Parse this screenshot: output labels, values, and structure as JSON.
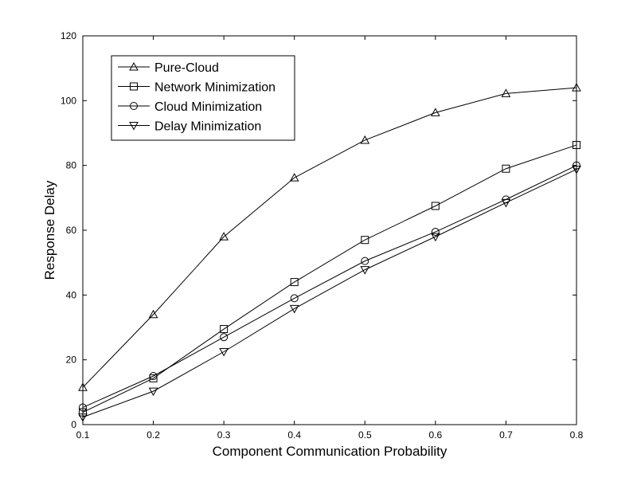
{
  "chart_data": {
    "type": "line",
    "title": "",
    "xlabel": "Component Communication Probability",
    "ylabel": "Response Delay",
    "x": [
      0.1,
      0.2,
      0.3,
      0.4,
      0.5,
      0.6,
      0.7,
      0.8
    ],
    "xlim": [
      0.1,
      0.8
    ],
    "ylim": [
      0,
      120
    ],
    "xticks": [
      "0.1",
      "0.2",
      "0.3",
      "0.4",
      "0.5",
      "0.6",
      "0.7",
      "0.8"
    ],
    "yticks": [
      "0",
      "20",
      "40",
      "60",
      "80",
      "100",
      "120"
    ],
    "grid": false,
    "legend_position": "top-left",
    "series": [
      {
        "name": "Pure-Cloud",
        "marker": "triangle-up",
        "values": [
          11.5,
          34.0,
          58.0,
          76.2,
          87.8,
          96.3,
          102.2,
          104.0
        ]
      },
      {
        "name": "Network Minimization",
        "marker": "square",
        "values": [
          3.8,
          14.3,
          29.5,
          44.0,
          57.0,
          67.5,
          79.0,
          86.3
        ]
      },
      {
        "name": "Cloud  Minimization",
        "marker": "circle",
        "values": [
          5.3,
          15.0,
          27.0,
          39.0,
          50.5,
          59.5,
          69.5,
          80.0
        ]
      },
      {
        "name": "Delay Minimization",
        "marker": "triangle-down",
        "values": [
          2.3,
          10.3,
          22.5,
          35.8,
          47.8,
          58.0,
          68.5,
          78.8
        ]
      }
    ]
  }
}
